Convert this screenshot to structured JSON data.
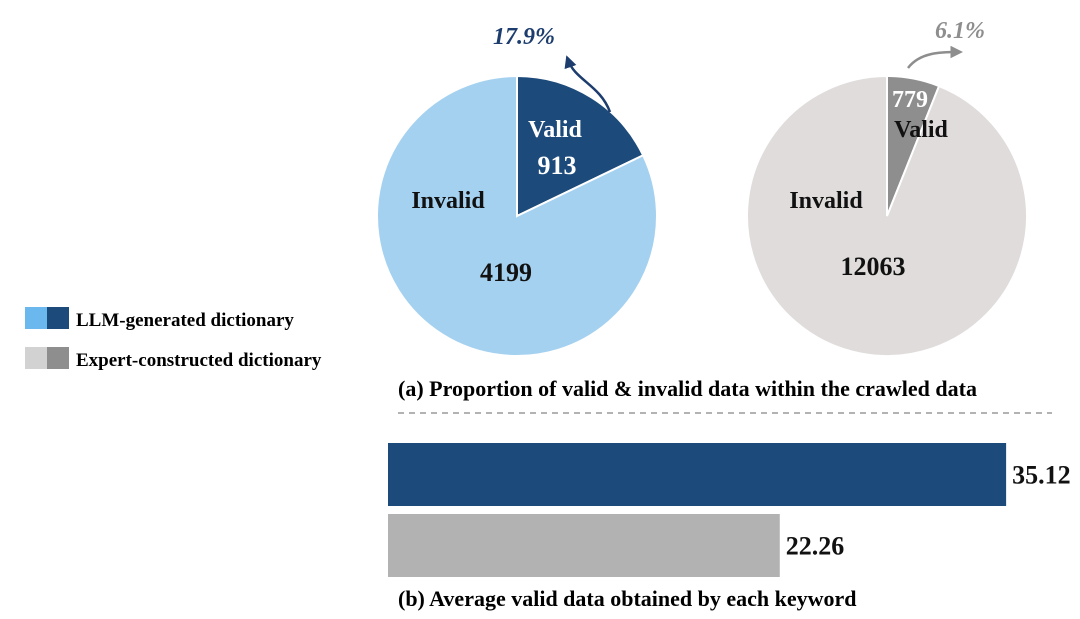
{
  "legend": {
    "entries": [
      {
        "label": "LLM-generated dictionary",
        "colors": [
          "#6bb8ee",
          "#1c4a7a"
        ]
      },
      {
        "label": "Expert-constructed dictionary",
        "colors": [
          "#d2d2d2",
          "#8e8e8e"
        ]
      }
    ]
  },
  "chart_data": [
    {
      "type": "pie",
      "name": "llm",
      "caption": "",
      "slices": [
        {
          "label": "Valid",
          "value": 913,
          "color": "#1c4a7a",
          "text_color": "#ffffff"
        },
        {
          "label": "Invalid",
          "value": 4199,
          "color": "#a5d1f0",
          "text_color": "#111111"
        }
      ],
      "percent_label": "17.9%",
      "percent_color": "#1c3d6e"
    },
    {
      "type": "pie",
      "name": "expert",
      "caption": "",
      "slices": [
        {
          "label": "Valid",
          "value": 779,
          "color": "#8e8e8e",
          "text_color": "#111111"
        },
        {
          "label": "Invalid",
          "value": 12063,
          "color": "#dfdcdb",
          "text_color": "#111111"
        }
      ],
      "percent_label": "6.1%",
      "percent_color": "#8e8e8e"
    },
    {
      "type": "bar",
      "orientation": "horizontal",
      "caption": "(b) Average valid data obtained by each keyword",
      "categories": [
        "LLM-generated dictionary",
        "Expert-constructed dictionary"
      ],
      "values": [
        35.12,
        22.26
      ],
      "value_labels": [
        "35.12",
        "22.26"
      ],
      "colors": [
        "#1c4a7a",
        "#b2b2b2"
      ]
    }
  ],
  "captions": {
    "a": "(a) Proportion of valid & invalid data within the crawled data",
    "b": "(b) Average valid data obtained by each keyword"
  }
}
